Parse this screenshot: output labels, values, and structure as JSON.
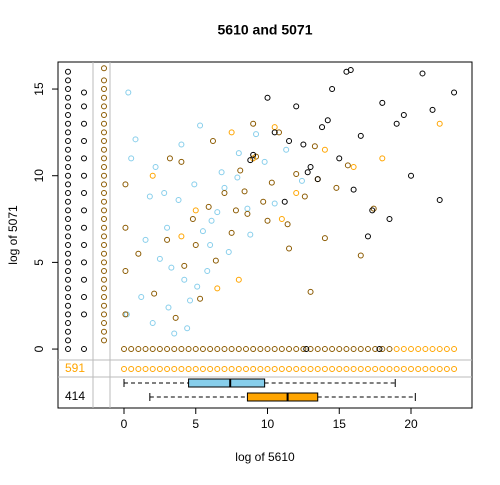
{
  "chart_data": {
    "type": "scatter",
    "title": "5610  and 5071",
    "xlabel": "log of 5610",
    "ylabel": "log of 5071",
    "xlim": [
      -4.6,
      24.25
    ],
    "ylim": [
      -3.4,
      16.56
    ],
    "xticks": [
      0,
      5,
      10,
      15,
      20
    ],
    "yticks": [
      0,
      5,
      10,
      15
    ],
    "series": [
      {
        "color": "#87ceeb",
        "x": [
          0.3,
          1.2,
          2.0,
          2.5,
          3.1,
          3.8,
          4.2,
          4.9,
          5.5,
          6.1,
          6.8,
          7.3,
          8.0,
          8.6,
          9.2,
          1.5,
          2.8,
          3.5,
          4.6,
          5.8,
          6.5,
          7.9,
          9.8,
          10.5,
          11.3,
          0.8,
          2.2,
          3.0,
          4.0,
          5.1,
          6.0,
          7.0,
          0.2,
          1.8,
          3.3,
          5.3,
          8.8,
          12.4,
          0.5,
          4.4
        ],
        "y": [
          14.8,
          3.0,
          1.5,
          5.2,
          2.4,
          8.6,
          4.0,
          9.5,
          6.8,
          7.4,
          10.2,
          5.6,
          11.3,
          8.1,
          12.4,
          6.3,
          9.0,
          0.9,
          2.8,
          4.5,
          7.9,
          9.9,
          10.8,
          8.4,
          11.5,
          12.1,
          10.5,
          7.0,
          11.8,
          3.6,
          6.0,
          9.3,
          2.0,
          8.8,
          4.7,
          12.9,
          6.6,
          9.7,
          11.0,
          1.2
        ]
      },
      {
        "color": "#8b5a00",
        "x": [
          0.1,
          0.1,
          0.1,
          0.1,
          1.0,
          2.1,
          3.0,
          3.6,
          4.2,
          4.8,
          5.3,
          5.9,
          6.4,
          7.0,
          7.5,
          8.1,
          8.6,
          9.2,
          9.7,
          10.3,
          10.8,
          11.4,
          12.0,
          12.6,
          13.3,
          14.0,
          14.8,
          15.6,
          16.5,
          17.4,
          6.2,
          7.8,
          9.0,
          5.0,
          4.0,
          10.0,
          11.5,
          13.0,
          3.2,
          8.4
        ],
        "y": [
          2.0,
          4.5,
          7.0,
          9.5,
          5.5,
          3.2,
          6.3,
          1.8,
          4.8,
          7.5,
          2.9,
          8.2,
          5.1,
          9.0,
          6.7,
          10.3,
          7.8,
          11.1,
          8.5,
          9.6,
          12.5,
          7.2,
          10.1,
          8.8,
          11.7,
          6.4,
          9.3,
          10.6,
          5.4,
          8.1,
          12.0,
          8.0,
          13.0,
          6.0,
          10.8,
          7.4,
          5.8,
          3.3,
          11.0,
          9.1
        ]
      },
      {
        "color": "#8b5a00",
        "x": [
          0,
          0.5,
          1,
          1.5,
          2,
          2.5,
          3,
          3.5,
          4,
          4.5,
          5,
          5.5,
          6,
          6.5,
          7,
          7.5,
          8,
          8.5,
          9,
          9.5,
          10,
          10.5,
          11,
          11.5,
          12,
          12.5,
          13,
          13.5,
          14,
          14.5,
          15,
          15.5,
          16,
          16.5,
          17,
          17.5,
          18,
          18.5
        ],
        "y": [
          0,
          0,
          0,
          0,
          0,
          0,
          0,
          0,
          0,
          0,
          0,
          0,
          0,
          0,
          0,
          0,
          0,
          0,
          0,
          0,
          0,
          0,
          0,
          0,
          0,
          0,
          0,
          0,
          0,
          0,
          0,
          0,
          0,
          0,
          0,
          0,
          0,
          0
        ]
      },
      {
        "color": "#ffa500",
        "x": [
          2.0,
          5.0,
          7.5,
          9.0,
          10.5,
          12.0,
          14.0,
          16.0,
          18.0,
          22.0,
          4.0,
          8.0,
          11.0,
          13.5,
          6.5,
          19,
          19.5,
          20,
          20.5,
          21,
          21.5,
          22,
          22.5,
          23
        ],
        "y": [
          10.0,
          8.0,
          12.5,
          11.0,
          12.8,
          9.0,
          11.5,
          10.5,
          11.0,
          13.0,
          6.5,
          4.0,
          7.5,
          9.8,
          3.5,
          0,
          0,
          0,
          0,
          0,
          0,
          0,
          0,
          0
        ]
      },
      {
        "color": "#000000",
        "x": [
          9.0,
          10.5,
          11.2,
          12.0,
          12.8,
          13.5,
          14.2,
          15.0,
          15.8,
          16.5,
          17.3,
          18.0,
          19.0,
          20.0,
          21.5,
          22.0,
          23.0,
          17.0,
          14.5,
          13.0,
          11.5,
          10.0,
          18.5,
          16.0,
          12.5,
          15.5,
          19.5,
          8.8,
          20.8,
          13.8,
          12.7,
          17.8
        ],
        "y": [
          11.2,
          12.5,
          8.5,
          14.0,
          10.2,
          9.8,
          13.2,
          11.0,
          16.1,
          12.3,
          8.0,
          14.2,
          13.0,
          10.0,
          13.8,
          8.6,
          14.8,
          6.5,
          15.0,
          10.5,
          12.0,
          14.5,
          7.5,
          9.2,
          11.8,
          16.0,
          13.5,
          10.9,
          15.9,
          12.8,
          0,
          0
        ]
      }
    ],
    "x_missing": [
      {
        "color": "#000000",
        "y": [
          0,
          0.5,
          1,
          1.5,
          2,
          2.5,
          3,
          3.5,
          4,
          4.5,
          5,
          5.5,
          6,
          6.5,
          7,
          7.5,
          8,
          8.5,
          9,
          9.5,
          10,
          10.5,
          11,
          11.5,
          12,
          12.5,
          13,
          13.5,
          14,
          14.5,
          15,
          15.5,
          16
        ]
      },
      {
        "color": "#000000",
        "y": [
          0,
          2,
          3,
          4,
          5,
          6,
          7,
          8,
          9,
          10,
          11,
          12,
          13,
          14,
          14.8
        ]
      },
      {
        "color": "#8b5a00",
        "y": [
          0.5,
          1,
          1.5,
          2,
          2.5,
          3,
          3.5,
          4,
          4.5,
          5,
          5.5,
          6,
          6.5,
          7,
          7.5,
          8,
          8.5,
          9,
          9.5,
          10,
          10.5,
          11,
          11.5,
          12,
          12.5,
          13,
          13.5,
          14,
          14.5,
          15,
          15.5,
          16.2
        ]
      }
    ],
    "y_missing": {
      "color": "#ffa500",
      "x": [
        0,
        0.5,
        1,
        1.5,
        2,
        2.5,
        3,
        3.5,
        4,
        4.5,
        5,
        5.5,
        6,
        6.5,
        7,
        7.5,
        8,
        8.5,
        9,
        9.5,
        10,
        10.5,
        11,
        11.5,
        12,
        12.5,
        13,
        13.5,
        14,
        14.5,
        15,
        15.5,
        16,
        16.5,
        17,
        17.5,
        18,
        18.5,
        19,
        19.5,
        20,
        20.5,
        21,
        21.5,
        22,
        22.5,
        23
      ]
    },
    "missing_counts": [
      {
        "value": 591,
        "color": "#ffa500"
      },
      {
        "value": 414,
        "color": "#000000"
      }
    ],
    "boxplots": [
      {
        "color": "#87ceeb",
        "stats": [
          0,
          4.5,
          7.4,
          9.8,
          18.9
        ]
      },
      {
        "color": "#ffa500",
        "stats": [
          1.8,
          8.6,
          11.4,
          13.5,
          20.3
        ]
      }
    ]
  }
}
